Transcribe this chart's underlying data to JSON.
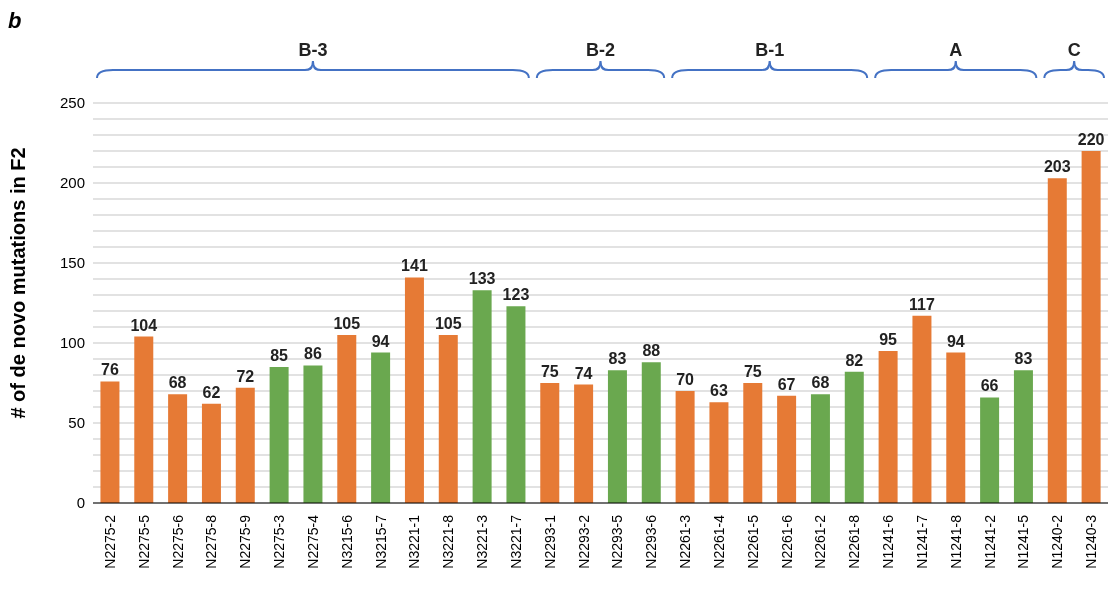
{
  "chart_data": {
    "type": "bar",
    "title": "b",
    "ylabel": "# of de novo mutations in F2",
    "categories": [
      "N2275-2",
      "N2275-5",
      "N2275-6",
      "N2275-8",
      "N2275-9",
      "N2275-3",
      "N2275-4",
      "N3215-6",
      "N3215-7",
      "N3221-1",
      "N3221-8",
      "N3221-3",
      "N3221-7",
      "N2293-1",
      "N2293-2",
      "N2293-5",
      "N2293-6",
      "N2261-3",
      "N2261-4",
      "N2261-5",
      "N2261-6",
      "N2261-2",
      "N2261-8",
      "N1241-6",
      "N1241-7",
      "N1241-8",
      "N1241-2",
      "N1241-5",
      "N1240-2",
      "N1240-3"
    ],
    "values": [
      76,
      104,
      68,
      62,
      72,
      85,
      86,
      105,
      94,
      141,
      105,
      133,
      123,
      75,
      74,
      83,
      88,
      70,
      63,
      75,
      67,
      68,
      82,
      95,
      117,
      94,
      66,
      83,
      203,
      220
    ],
    "colors": [
      "#e67a35",
      "#e67a35",
      "#e67a35",
      "#e67a35",
      "#e67a35",
      "#6aa84f",
      "#6aa84f",
      "#e67a35",
      "#6aa84f",
      "#e67a35",
      "#e67a35",
      "#6aa84f",
      "#6aa84f",
      "#e67a35",
      "#e67a35",
      "#6aa84f",
      "#6aa84f",
      "#e67a35",
      "#e67a35",
      "#e67a35",
      "#e67a35",
      "#6aa84f",
      "#6aa84f",
      "#e67a35",
      "#e67a35",
      "#e67a35",
      "#6aa84f",
      "#6aa84f",
      "#e67a35",
      "#e67a35"
    ],
    "data_labels": true,
    "ylim": [
      0,
      250
    ],
    "yticks": [
      0,
      {
        "value": 10,
        "label": null
      },
      {
        "value": 20,
        "label": null
      },
      {
        "value": 30,
        "label": null
      },
      {
        "value": 40,
        "label": null
      },
      50,
      {
        "value": 60,
        "label": null
      },
      {
        "value": 70,
        "label": null
      },
      {
        "value": 80,
        "label": null
      },
      {
        "value": 90,
        "label": null
      },
      100,
      {
        "value": 110,
        "label": null
      },
      {
        "value": 120,
        "label": null
      },
      {
        "value": 130,
        "label": null
      },
      {
        "value": 140,
        "label": null
      },
      150,
      {
        "value": 160,
        "label": null
      },
      {
        "value": 170,
        "label": null
      },
      {
        "value": 180,
        "label": null
      },
      {
        "value": 190,
        "label": null
      },
      200,
      {
        "value": 210,
        "label": null
      },
      {
        "value": 220,
        "label": null
      },
      {
        "value": 230,
        "label": null
      },
      {
        "value": 240,
        "label": null
      },
      250
    ],
    "grid": true,
    "annotations": [
      "B-3",
      "B-2",
      "B-1",
      "A",
      "C"
    ]
  }
}
